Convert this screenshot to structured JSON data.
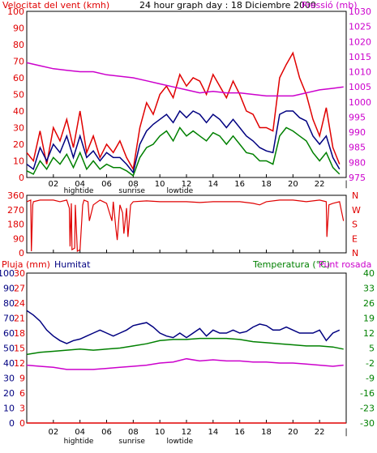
{
  "top_panel": {
    "left_title": "Velocitat del vent (kmh)",
    "center_title": "24 hour graph day : 18 Diciembre 2009",
    "right_title": "Pressió (mb)",
    "colors": {
      "left": "#e00000",
      "center": "#000000",
      "right": "#cc00cc"
    }
  },
  "bottom_panel": {
    "title_rain": "Pluja (mm)",
    "title_humidity": "Humitat",
    "title_temp": "Temperatura (°C)",
    "title_dew": "Punt rosada",
    "colors": {
      "rain": "#e00000",
      "humidity": "#000080",
      "temp": "#008000",
      "dew": "#cc00cc"
    }
  },
  "x_axis": {
    "hour_labels": [
      "02",
      "04",
      "06",
      "08",
      "10",
      "12",
      "14",
      "16",
      "18",
      "20",
      "22",
      "|"
    ],
    "event_labels": [
      {
        "text": "hightide",
        "hour": 3.9
      },
      {
        "text": "sunrise",
        "hour": 7.9
      },
      {
        "text": "lowtide",
        "hour": 11.5
      }
    ]
  },
  "chart_data": [
    {
      "type": "line",
      "title": "Velocitat del vent (kmh) / Pressió (mb)",
      "x_range": [
        0,
        24
      ],
      "ylim_left": [
        0,
        100
      ],
      "ylim_right": [
        975,
        1030
      ],
      "yticks_left": [
        "100",
        "90",
        "80",
        "70",
        "60",
        "50",
        "40",
        "30",
        "20",
        "10",
        "0"
      ],
      "yticks_right": [
        "1030",
        "1025",
        "1020",
        "1015",
        "1010",
        "1005",
        "1000",
        "995",
        "990",
        "985",
        "980",
        "975"
      ],
      "series": [
        {
          "axis": "left",
          "color": "#e00000",
          "x": [
            0,
            0.5,
            1,
            1.5,
            2,
            2.5,
            3,
            3.5,
            4,
            4.5,
            5,
            5.5,
            6,
            6.5,
            7,
            7.5,
            8,
            8.5,
            9,
            9.5,
            10,
            10.5,
            11,
            11.5,
            12,
            12.5,
            13,
            13.5,
            14,
            14.5,
            15,
            15.5,
            16,
            16.5,
            17,
            17.5,
            18,
            18.5,
            19,
            19.5,
            20,
            20.5,
            21,
            21.5,
            22,
            22.5,
            23,
            23.5
          ],
          "y": [
            15,
            10,
            28,
            8,
            30,
            22,
            35,
            18,
            40,
            15,
            25,
            12,
            20,
            15,
            22,
            12,
            5,
            30,
            45,
            38,
            50,
            55,
            48,
            62,
            55,
            60,
            58,
            50,
            62,
            55,
            48,
            58,
            50,
            40,
            38,
            30,
            30,
            28,
            60,
            68,
            75,
            60,
            50,
            35,
            25,
            42,
            18,
            8
          ]
        },
        {
          "axis": "left",
          "color": "#000080",
          "x": [
            0,
            0.5,
            1,
            1.5,
            2,
            2.5,
            3,
            3.5,
            4,
            4.5,
            5,
            5.5,
            6,
            6.5,
            7,
            7.5,
            8,
            8.5,
            9,
            9.5,
            10,
            10.5,
            11,
            11.5,
            12,
            12.5,
            13,
            13.5,
            14,
            14.5,
            15,
            15.5,
            16,
            16.5,
            17,
            17.5,
            18,
            18.5,
            19,
            19.5,
            20,
            20.5,
            21,
            21.5,
            22,
            22.5,
            23,
            23.5
          ],
          "y": [
            8,
            5,
            18,
            10,
            20,
            15,
            25,
            12,
            25,
            12,
            16,
            10,
            15,
            12,
            12,
            8,
            3,
            20,
            28,
            32,
            35,
            38,
            33,
            40,
            36,
            40,
            38,
            33,
            38,
            35,
            30,
            35,
            30,
            25,
            22,
            18,
            16,
            15,
            38,
            40,
            40,
            36,
            34,
            25,
            20,
            25,
            12,
            5
          ]
        },
        {
          "axis": "left",
          "color": "#008000",
          "x": [
            0,
            0.5,
            1,
            1.5,
            2,
            2.5,
            3,
            3.5,
            4,
            4.5,
            5,
            5.5,
            6,
            6.5,
            7,
            7.5,
            8,
            8.5,
            9,
            9.5,
            10,
            10.5,
            11,
            11.5,
            12,
            12.5,
            13,
            13.5,
            14,
            14.5,
            15,
            15.5,
            16,
            16.5,
            17,
            17.5,
            18,
            18.5,
            19,
            19.5,
            20,
            20.5,
            21,
            21.5,
            22,
            22.5,
            23,
            23.5
          ],
          "y": [
            4,
            2,
            10,
            5,
            12,
            8,
            14,
            6,
            15,
            5,
            10,
            5,
            8,
            6,
            6,
            4,
            1,
            12,
            18,
            20,
            25,
            28,
            22,
            30,
            25,
            28,
            25,
            22,
            27,
            25,
            20,
            25,
            20,
            15,
            14,
            10,
            10,
            8,
            25,
            30,
            28,
            25,
            22,
            15,
            10,
            15,
            6,
            2
          ]
        },
        {
          "axis": "right",
          "color": "#cc00cc",
          "x": [
            0,
            1,
            2,
            3,
            4,
            5,
            6,
            7,
            8,
            9,
            10,
            11,
            12,
            13,
            14,
            15,
            16,
            17,
            18,
            19,
            20,
            21,
            22,
            23,
            23.8
          ],
          "y": [
            1013,
            1012,
            1011,
            1010.5,
            1010,
            1010,
            1009,
            1008.5,
            1008,
            1007,
            1006,
            1005,
            1004,
            1003,
            1003.5,
            1003,
            1003,
            1002.5,
            1002,
            1002,
            1002,
            1003,
            1004,
            1004.5,
            1005
          ]
        }
      ]
    },
    {
      "type": "line",
      "title": "Wind direction",
      "x_range": [
        0,
        24
      ],
      "ylim": [
        0,
        360
      ],
      "yticks_left": [
        "360",
        "270",
        "180",
        "90",
        "0"
      ],
      "yticks_right": [
        "N",
        "W",
        "S",
        "E",
        "N"
      ],
      "series": [
        {
          "color": "#e00000",
          "x": [
            0,
            0.3,
            0.35,
            0.45,
            0.5,
            1,
            1.5,
            2,
            2.5,
            3,
            3.2,
            3.25,
            3.35,
            3.4,
            3.6,
            3.65,
            3.8,
            4,
            4.2,
            4.3,
            4.6,
            4.7,
            5,
            5.5,
            6,
            6.4,
            6.5,
            6.7,
            6.8,
            7,
            7.2,
            7.3,
            7.5,
            7.6,
            7.8,
            8,
            9,
            10,
            11,
            12,
            13,
            14,
            15,
            16,
            17,
            17.5,
            18,
            19,
            20,
            21,
            22,
            22.5,
            22.55,
            22.7,
            23,
            23.5,
            23.8
          ],
          "y": [
            320,
            330,
            10,
            300,
            320,
            330,
            330,
            330,
            320,
            330,
            280,
            40,
            310,
            20,
            30,
            300,
            10,
            20,
            300,
            330,
            320,
            200,
            300,
            330,
            310,
            200,
            320,
            150,
            80,
            300,
            250,
            120,
            280,
            100,
            300,
            320,
            325,
            320,
            320,
            320,
            315,
            320,
            320,
            320,
            310,
            300,
            320,
            330,
            330,
            320,
            330,
            320,
            100,
            300,
            310,
            320,
            200
          ]
        }
      ]
    },
    {
      "type": "line",
      "title": "Pluja (mm) / Humitat / Temperatura (°C) / Punt rosada",
      "x_range": [
        0,
        24
      ],
      "ylim_humidity": [
        0,
        100
      ],
      "ylim_rain": [
        0,
        30
      ],
      "ylim_temp": [
        -30,
        40
      ],
      "yticks_humidity": [
        "100",
        "90",
        "80",
        "70",
        "60",
        "50",
        "40",
        "30",
        "20",
        "10",
        "0"
      ],
      "yticks_rain": [
        "30",
        "27",
        "24",
        "21",
        "18",
        "15",
        "12",
        "9",
        "6",
        "3",
        "0"
      ],
      "yticks_temp": [
        "40",
        "33",
        "26",
        "19",
        "12",
        "5",
        "-2",
        "-9",
        "-16",
        "-23",
        "-30"
      ],
      "series": [
        {
          "name": "Humitat",
          "axis": "humidity",
          "color": "#000080",
          "x": [
            0,
            0.5,
            1,
            1.5,
            2,
            2.5,
            3,
            3.5,
            4,
            4.5,
            5,
            5.5,
            6,
            6.5,
            7,
            7.5,
            8,
            8.5,
            9,
            9.5,
            10,
            10.5,
            11,
            11.5,
            12,
            12.5,
            13,
            13.5,
            14,
            14.5,
            15,
            15.5,
            16,
            16.5,
            17,
            17.5,
            18,
            18.5,
            19,
            19.5,
            20,
            20.5,
            21,
            21.5,
            22,
            22.5,
            23,
            23.5
          ],
          "y": [
            75,
            72,
            68,
            62,
            58,
            55,
            53,
            55,
            56,
            58,
            60,
            62,
            60,
            58,
            60,
            62,
            65,
            66,
            67,
            64,
            60,
            58,
            57,
            60,
            57,
            60,
            63,
            58,
            62,
            60,
            60,
            62,
            60,
            61,
            64,
            66,
            65,
            62,
            62,
            64,
            62,
            60,
            60,
            60,
            62,
            55,
            60,
            62
          ]
        },
        {
          "name": "Temperatura",
          "axis": "temp",
          "color": "#008000",
          "x": [
            0,
            1,
            2,
            3,
            4,
            5,
            6,
            7,
            8,
            9,
            10,
            11,
            12,
            13,
            14,
            15,
            16,
            17,
            18,
            19,
            20,
            21,
            22,
            23,
            23.8
          ],
          "y": [
            2,
            3,
            3.5,
            4,
            4.5,
            4,
            4.5,
            5,
            6,
            7,
            8.5,
            9,
            9,
            9.5,
            9.5,
            9.5,
            9,
            8,
            7.5,
            7,
            6.5,
            6,
            6,
            5.5,
            4.5
          ]
        },
        {
          "name": "Punt rosada",
          "axis": "temp",
          "color": "#cc00cc",
          "x": [
            0,
            1,
            2,
            3,
            4,
            5,
            6,
            7,
            8,
            9,
            10,
            11,
            12,
            13,
            14,
            15,
            16,
            17,
            18,
            19,
            20,
            21,
            22,
            23,
            23.8
          ],
          "y": [
            -3,
            -3.5,
            -4,
            -5,
            -5,
            -5,
            -4.5,
            -4,
            -3.5,
            -3,
            -2,
            -1.5,
            0,
            -1,
            -0.5,
            -1,
            -1,
            -1.5,
            -1.5,
            -2,
            -2,
            -2.5,
            -3,
            -3.5,
            -3
          ]
        },
        {
          "name": "Pluja",
          "axis": "rain",
          "color": "#e00000",
          "x": [
            0,
            24
          ],
          "y": [
            0,
            0
          ]
        }
      ]
    }
  ]
}
